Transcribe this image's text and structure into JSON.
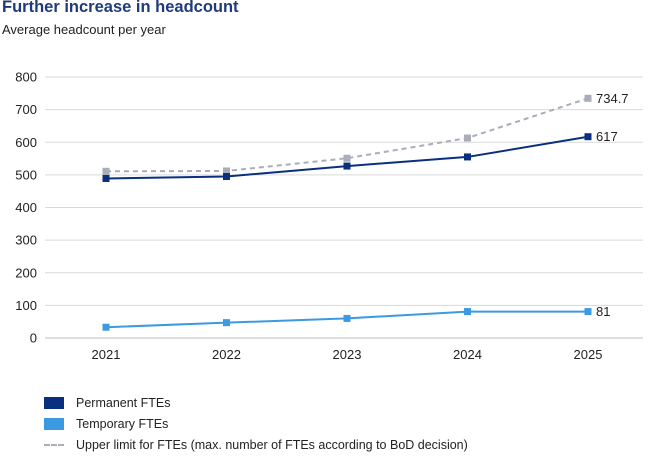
{
  "chart_data": {
    "type": "line",
    "title": "Further increase in headcount",
    "subtitle": "Average headcount per year",
    "categories": [
      "2021",
      "2022",
      "2023",
      "2024",
      "2025"
    ],
    "ylim": [
      0,
      800
    ],
    "yticks": [
      "0",
      "100",
      "200",
      "300",
      "400",
      "500",
      "600",
      "700",
      "800"
    ],
    "grid": true,
    "legend_position": "bottom-left",
    "series": [
      {
        "name": "Permanent FTEs",
        "color": "#0a2f7f",
        "style": "solid",
        "values": [
          489,
          495,
          527,
          555,
          617
        ],
        "end_label": "617"
      },
      {
        "name": "Temporary FTEs",
        "color": "#3b9ae2",
        "style": "solid",
        "values": [
          33,
          47,
          60,
          81,
          81
        ],
        "end_label": "81"
      },
      {
        "name": "Upper limit for FTEs (max. number of FTEs according to BoD decision)",
        "color": "#a8adb9",
        "style": "dashed",
        "values": [
          511,
          512,
          551,
          613,
          734.7
        ],
        "end_label": "734.7"
      }
    ]
  }
}
